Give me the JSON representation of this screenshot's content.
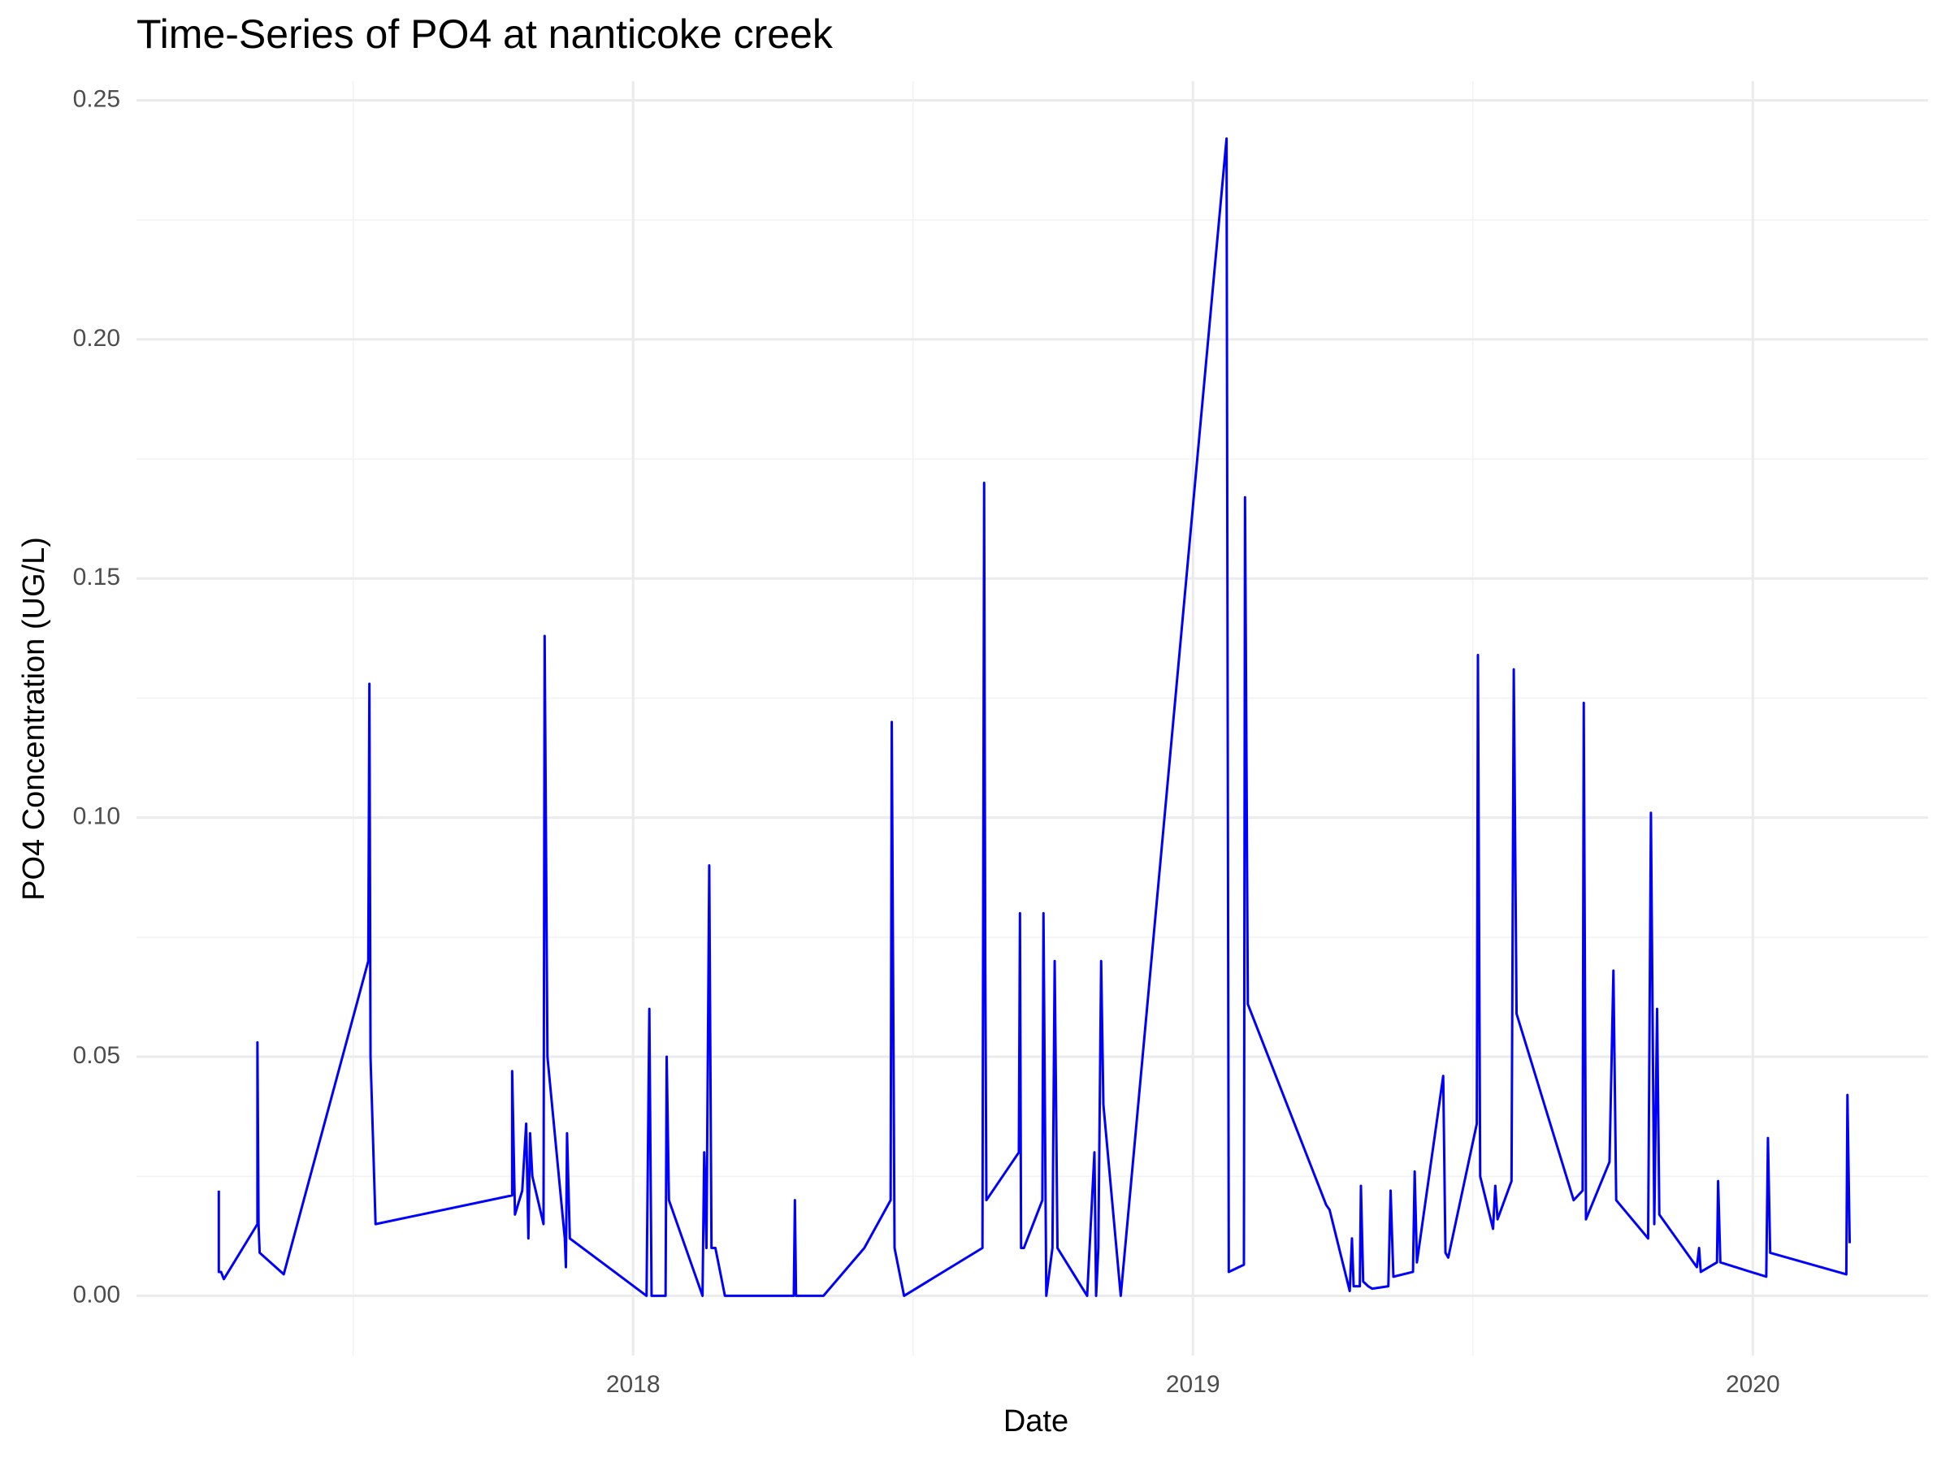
{
  "chart_data": {
    "type": "line",
    "title": "Time-Series of PO4 at nanticoke creek",
    "x_label": "Date",
    "y_label": "PO4 Concentration (UG/L)",
    "color": "#0000ff",
    "grid": true,
    "xlim": [
      2017.113,
      2020.313
    ],
    "ylim": [
      -0.0125,
      0.254
    ],
    "xticks": [
      2018,
      2019,
      2020
    ],
    "yticks": [
      {
        "value": 0,
        "label": "0.00"
      },
      0.05,
      {
        "value": 0.1,
        "label": "0.10"
      },
      0.15,
      {
        "value": 0.2,
        "label": "0.20"
      },
      0.25
    ],
    "x": [
      2017.26,
      2017.26,
      2017.264,
      2017.269,
      2017.329,
      2017.329,
      2017.331,
      2017.333,
      2017.376,
      2017.527,
      2017.529,
      2017.531,
      2017.54,
      2017.784,
      2017.784,
      2017.789,
      2017.802,
      2017.809,
      2017.813,
      2017.816,
      2017.82,
      2017.84,
      2017.842,
      2017.847,
      2017.878,
      2017.88,
      2017.882,
      2017.887,
      2018.024,
      2018.029,
      2018.033,
      2018.058,
      2018.06,
      2018.064,
      2018.124,
      2018.127,
      2018.131,
      2018.136,
      2018.14,
      2018.147,
      2018.164,
      2018.287,
      2018.289,
      2018.291,
      2018.34,
      2018.413,
      2018.46,
      2018.462,
      2018.467,
      2018.484,
      2018.624,
      2018.627,
      2018.629,
      2018.631,
      2018.689,
      2018.691,
      2018.693,
      2018.698,
      2018.731,
      2018.733,
      2018.738,
      2018.749,
      2018.753,
      2018.758,
      2018.811,
      2018.824,
      2018.827,
      2018.831,
      2018.836,
      2018.84,
      2018.871,
      2019.06,
      2019.064,
      2019.091,
      2019.093,
      2019.098,
      2019.238,
      2019.244,
      2019.28,
      2019.284,
      2019.287,
      2019.298,
      2019.3,
      2019.304,
      2019.313,
      2019.32,
      2019.349,
      2019.353,
      2019.358,
      2019.393,
      2019.396,
      2019.4,
      2019.447,
      2019.451,
      2019.456,
      2019.507,
      2019.509,
      2019.513,
      2019.536,
      2019.54,
      2019.544,
      2019.569,
      2019.573,
      2019.578,
      2019.68,
      2019.696,
      2019.698,
      2019.702,
      2019.744,
      2019.751,
      2019.756,
      2019.813,
      2019.818,
      2019.824,
      2019.829,
      2019.833,
      2019.9,
      2019.904,
      2019.907,
      2019.936,
      2019.938,
      2019.942,
      2020.024,
      2020.027,
      2020.031,
      2020.167,
      2020.169,
      2020.173
    ],
    "values": [
      0.022,
      0.005,
      0.005,
      0.0035,
      0.015,
      0.053,
      0.015,
      0.009,
      0.0045,
      0.07,
      0.128,
      0.05,
      0.015,
      0.021,
      0.047,
      0.017,
      0.022,
      0.036,
      0.012,
      0.034,
      0.025,
      0.015,
      0.138,
      0.05,
      0.012,
      0.006,
      0.034,
      0.012,
      0,
      0.06,
      0,
      0,
      0.05,
      0.02,
      0,
      0.03,
      0.01,
      0.09,
      0.01,
      0.01,
      0,
      0,
      0.02,
      0,
      0,
      0.01,
      0.02,
      0.12,
      0.01,
      0,
      0.01,
      0.17,
      0.07,
      0.02,
      0.03,
      0.08,
      0.01,
      0.01,
      0.02,
      0.08,
      0,
      0.01,
      0.07,
      0.01,
      0,
      0.03,
      0,
      0.01,
      0.07,
      0.04,
      0,
      0.242,
      0.005,
      0.0065,
      0.167,
      0.061,
      0.019,
      0.018,
      0.001,
      0.012,
      0.002,
      0.002,
      0.023,
      0.003,
      0.002,
      0.0015,
      0.002,
      0.022,
      0.004,
      0.005,
      0.026,
      0.007,
      0.046,
      0.009,
      0.008,
      0.036,
      0.134,
      0.025,
      0.014,
      0.023,
      0.016,
      0.024,
      0.131,
      0.059,
      0.02,
      0.022,
      0.124,
      0.016,
      0.028,
      0.068,
      0.02,
      0.012,
      0.101,
      0.015,
      0.06,
      0.017,
      0.006,
      0.01,
      0.005,
      0.007,
      0.024,
      0.007,
      0.004,
      0.033,
      0.009,
      0.0045,
      0.042,
      0.011
    ]
  }
}
